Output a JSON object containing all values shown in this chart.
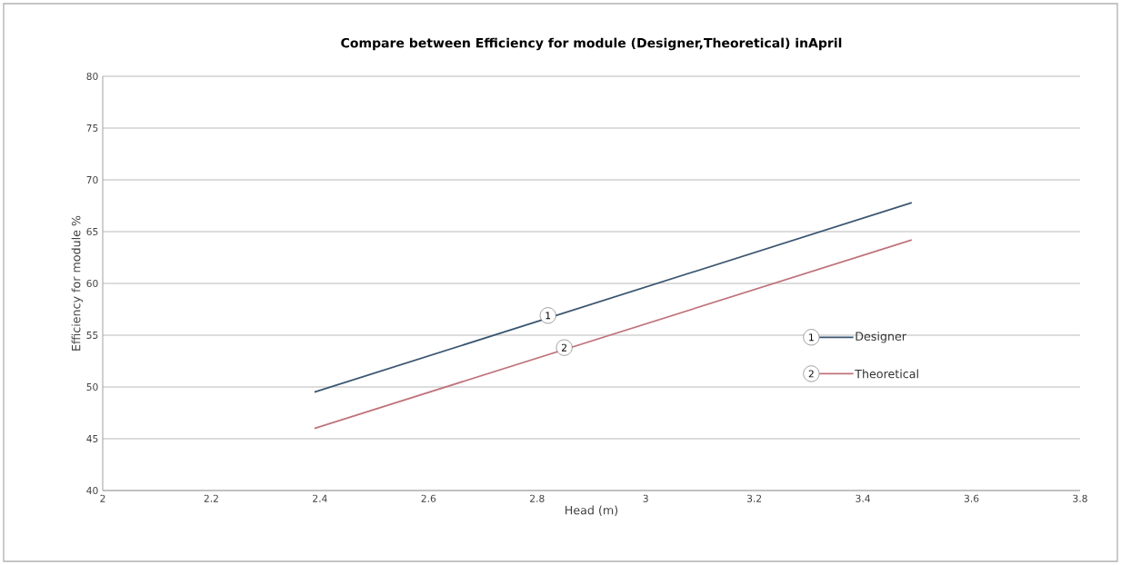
{
  "chart_data": {
    "type": "line",
    "title": "Compare between Efficiency for module (Designer,Theoretical)  inApril",
    "xlabel": "Head (m)",
    "ylabel": "Efficiency  for module %",
    "series": [
      {
        "name": "Designer",
        "color": "#3b5670",
        "values": [
          49.5,
          67.8
        ]
      },
      {
        "name": "Theoretical",
        "color": "#c0737b",
        "values": [
          46.0,
          64.2
        ]
      }
    ],
    "x": [
      2.39,
      3.49
    ],
    "annotations": [
      {
        "text": "1",
        "x": 2.82,
        "y": 56.9
      },
      {
        "text": "2",
        "x": 2.85,
        "y": 53.8
      }
    ],
    "xlim": [
      2,
      3.8
    ],
    "xticks": [
      2,
      2.2,
      2.4,
      2.6,
      2.8,
      3,
      3.2,
      3.4,
      3.6,
      3.8
    ],
    "ylim": [
      40,
      80
    ],
    "yticks": [
      40,
      45,
      50,
      55,
      60,
      65,
      70,
      75,
      80
    ],
    "grid": "y",
    "legend": "right",
    "marker": "none",
    "line_style": "solid"
  }
}
